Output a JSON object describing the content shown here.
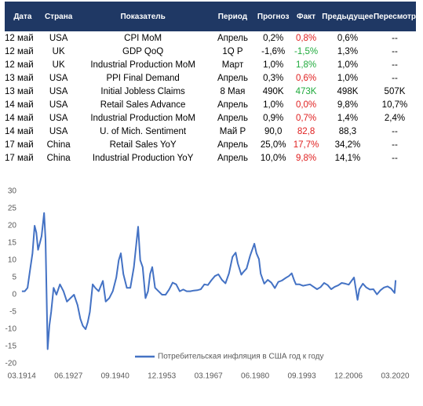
{
  "table": {
    "header": [
      "Дата",
      "Страна",
      "Показатель",
      "Период",
      "Прогноз",
      "Факт",
      "Предыдущее",
      "Пересмотр"
    ],
    "rows": [
      [
        "12 май",
        "USA",
        "CPI MoM",
        "Апрель",
        "0,2%",
        "0,8%",
        "0,6%",
        "--"
      ],
      [
        "12 май",
        "UK",
        "GDP QoQ",
        "1Q P",
        "-1,6%",
        "-1,5%",
        "1,3%",
        "--"
      ],
      [
        "12 май",
        "UK",
        "Industrial Production MoM",
        "Март",
        "1,0%",
        "1,8%",
        "1,0%",
        "--"
      ],
      [
        "13 май",
        "USA",
        "PPI Final Demand",
        "Апрель",
        "0,3%",
        "0,6%",
        "1,0%",
        "--"
      ],
      [
        "13 май",
        "USA",
        "Initial Jobless Claims",
        "8 Мая",
        "490K",
        "473K",
        "498K",
        "507K"
      ],
      [
        "14 май",
        "USA",
        "Retail Sales Advance",
        "Апрель",
        "1,0%",
        "0,0%",
        "9,8%",
        "10,7%"
      ],
      [
        "14 май",
        "USA",
        "Industrial Production MoM",
        "Апрель",
        "0,9%",
        "0,7%",
        "1,4%",
        "2,4%"
      ],
      [
        "14 май",
        "USA",
        "U. of Mich. Sentiment",
        "Май P",
        "90,0",
        "82,8",
        "88,3",
        "--"
      ],
      [
        "17 май",
        "China",
        "Retail Sales YoY",
        "Апрель",
        "25,0%",
        "17,7%",
        "34,2%",
        "--"
      ],
      [
        "17 май",
        "China",
        "Industrial Production YoY",
        "Апрель",
        "10,0%",
        "9,8%",
        "14,1%",
        "--"
      ]
    ],
    "fact_colors": [
      "#e02020",
      "#1faa3c",
      "#1faa3c",
      "#e02020",
      "#1faa3c",
      "#e02020",
      "#e02020",
      "#e02020",
      "#e02020",
      "#e02020"
    ]
  },
  "chart_data": {
    "type": "line",
    "x": [
      1914.2,
      1915.0,
      1915.8,
      1916.5,
      1917.2,
      1917.8,
      1918.3,
      1918.8,
      1919.3,
      1919.8,
      1920.5,
      1920.9,
      1921.5,
      1922.0,
      1922.5,
      1923.2,
      1924.0,
      1925.0,
      1926.0,
      1927.0,
      1928.0,
      1929.0,
      1930.0,
      1930.8,
      1931.5,
      1932.3,
      1932.9,
      1933.5,
      1934.3,
      1935.0,
      1936.0,
      1937.2,
      1938.0,
      1939.0,
      1940.0,
      1941.0,
      1941.7,
      1942.3,
      1943.0,
      1944.0,
      1945.0,
      1946.0,
      1946.7,
      1947.2,
      1947.8,
      1948.5,
      1949.3,
      1950.0,
      1950.6,
      1951.2,
      1952.0,
      1953.0,
      1954.0,
      1955.0,
      1956.0,
      1957.0,
      1958.0,
      1959.0,
      1960.0,
      1961.0,
      1962.0,
      1963.0,
      1964.0,
      1965.0,
      1966.0,
      1967.0,
      1968.0,
      1969.0,
      1970.0,
      1971.0,
      1972.0,
      1973.0,
      1974.0,
      1974.9,
      1975.5,
      1976.5,
      1977.0,
      1978.0,
      1979.0,
      1980.2,
      1980.8,
      1981.5,
      1982.0,
      1983.0,
      1984.0,
      1985.0,
      1986.0,
      1987.0,
      1988.0,
      1989.0,
      1990.0,
      1990.8,
      1991.5,
      1992.0,
      1993.0,
      1994.0,
      1995.0,
      1996.0,
      1997.0,
      1998.0,
      1999.0,
      2000.0,
      2001.0,
      2002.0,
      2003.0,
      2004.0,
      2005.0,
      2006.0,
      2007.0,
      2008.5,
      2009.5,
      2010.0,
      2011.0,
      2012.0,
      2013.0,
      2014.0,
      2015.0,
      2016.0,
      2017.0,
      2018.0,
      2019.0,
      2020.0,
      2020.3
    ],
    "series": [
      {
        "name": "Потребительская инфляция в США год к году",
        "color": "#4472c4",
        "values": [
          1,
          1,
          2,
          7,
          12,
          20,
          18,
          13,
          15,
          17,
          23.7,
          16,
          -15.8,
          -9,
          -5,
          2,
          0,
          3,
          1,
          -2,
          -1,
          0,
          -3,
          -7,
          -9,
          -10,
          -8,
          -5,
          3,
          2,
          1,
          4,
          -2,
          -1,
          1,
          5,
          10,
          12,
          6,
          2,
          2,
          8,
          15,
          19.7,
          10,
          8,
          -1,
          1,
          6,
          8,
          2,
          1,
          0,
          0,
          1.5,
          3.5,
          3,
          1,
          1.5,
          1,
          1,
          1.2,
          1.3,
          1.6,
          3,
          2.8,
          4.2,
          5.4,
          5.9,
          4.3,
          3.3,
          6.2,
          11,
          12.2,
          9.1,
          5.8,
          6.5,
          7.6,
          11.3,
          14.8,
          12,
          10.3,
          6.1,
          3.2,
          4.3,
          3.5,
          1.9,
          3.7,
          4.1,
          4.8,
          5.4,
          6.2,
          4.2,
          3,
          3,
          2.6,
          2.8,
          3,
          2.3,
          1.6,
          2.2,
          3.4,
          2.8,
          1.6,
          2.3,
          2.7,
          3.4,
          3.2,
          2.9,
          5,
          -1.5,
          1.6,
          3.2,
          2.1,
          1.5,
          1.6,
          0.1,
          1.3,
          2.1,
          2.4,
          1.8,
          0.5,
          4.2
        ]
      }
    ],
    "xlim": [
      1914,
      2020.5
    ],
    "xticks": [
      {
        "value": 1914.17,
        "label": "03.1914"
      },
      {
        "value": 1927.42,
        "label": "06.1927"
      },
      {
        "value": 1940.67,
        "label": "09.1940"
      },
      {
        "value": 1953.92,
        "label": "12.1953"
      },
      {
        "value": 1967.17,
        "label": "03.1967"
      },
      {
        "value": 1980.42,
        "label": "06.1980"
      },
      {
        "value": 1993.67,
        "label": "09.1993"
      },
      {
        "value": 2006.92,
        "label": "12.2006"
      },
      {
        "value": 2020.17,
        "label": "03.2020"
      }
    ],
    "ylim": [
      -20,
      30
    ],
    "yticks": [
      -20,
      -15,
      -10,
      -5,
      0,
      5,
      10,
      15,
      20,
      25,
      30
    ],
    "grid": false
  }
}
